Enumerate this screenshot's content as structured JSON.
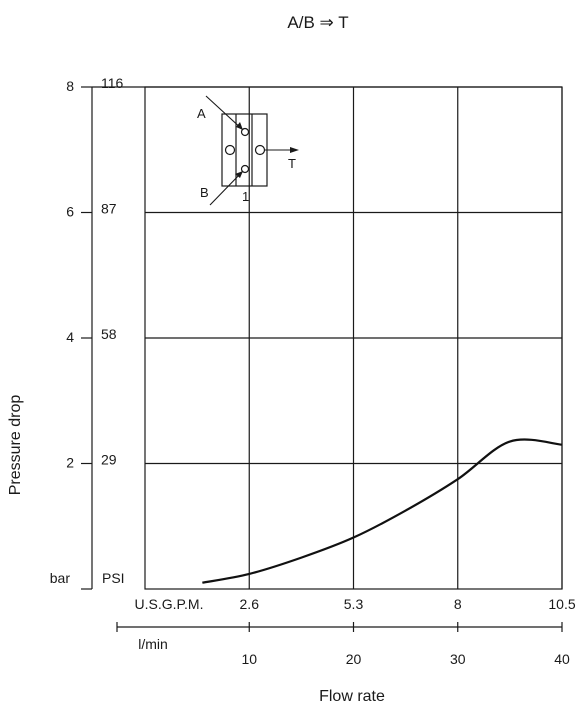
{
  "chart_data": {
    "type": "line",
    "title": "A/B ⇒ T",
    "xlabel": "Flow rate",
    "ylabel": "Pressure drop",
    "x_unit": "l/min",
    "x_unit_secondary": "U.S.G.P.M.",
    "y_unit": "bar",
    "y_unit_secondary": "PSI",
    "xlim": [
      0,
      40
    ],
    "ylim": [
      0,
      8
    ],
    "x_ticks": [
      "10",
      "20",
      "30",
      "40"
    ],
    "x_ticks_secondary": [
      "2.6",
      "5.3",
      "8",
      "10.5"
    ],
    "y_ticks": [
      "2",
      "4",
      "6",
      "8"
    ],
    "y_ticks_secondary": [
      "29",
      "58",
      "87",
      "116"
    ],
    "grid": true,
    "series": [
      {
        "x": [
          5.5,
          10,
          15,
          20,
          25,
          30,
          35,
          40
        ],
        "y": [
          0.1,
          0.24,
          0.5,
          0.82,
          1.25,
          1.75,
          2.35,
          2.3
        ]
      }
    ]
  },
  "inset": {
    "port_a": "A",
    "port_b": "B",
    "port_t": "T",
    "number": "1"
  }
}
